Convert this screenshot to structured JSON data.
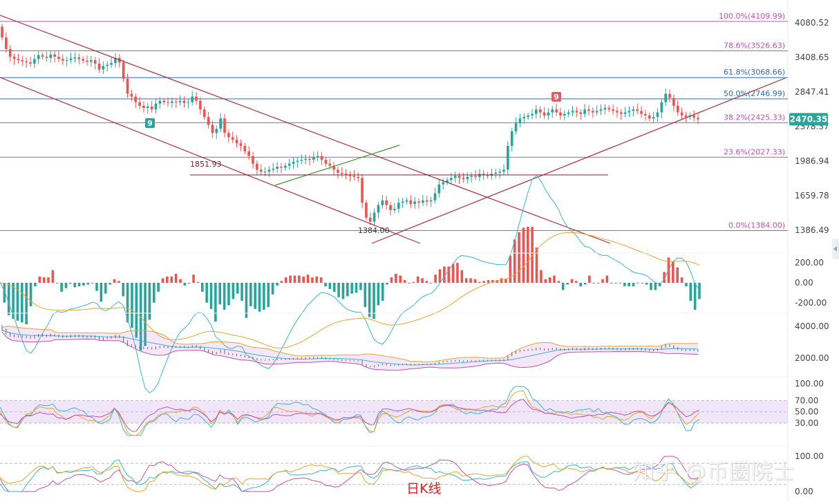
{
  "chart_data": [
    {
      "type": "candlestick",
      "panel": "price",
      "price_axis_ticks": [
        "4080.52",
        "3408.65",
        "2847.41",
        "2378.37",
        "1986.94",
        "1659.78",
        "1386.49"
      ],
      "last_price": "2470.35",
      "fibonacci_levels": [
        {
          "label": "100.0%(4109.99)",
          "price": 4109.99,
          "color": "#c051b0"
        },
        {
          "label": "78.6%(3526.63)",
          "price": 3526.63,
          "color": "#c051b0"
        },
        {
          "label": "61.8%(3068.66)",
          "price": 3068.66,
          "color": "#2a6cb0"
        },
        {
          "label": "50.0%(2746.99)",
          "price": 2746.99,
          "color": "#2a6cb0"
        },
        {
          "label": "38.2%(2425.33)",
          "price": 2425.33,
          "color": "#c051b0"
        },
        {
          "label": "23.6%(2027.33)",
          "price": 2027.33,
          "color": "#c051b0"
        },
        {
          "label": "0.0%(1384.00)",
          "price": 1384.0,
          "color": "#c051b0"
        }
      ],
      "annotations": [
        "1851.93",
        "1384.00"
      ],
      "td_markers": [
        "9",
        "9"
      ],
      "candles_close": [
        3780,
        3560,
        3420,
        3380,
        3360,
        3340,
        3320,
        3300,
        3380,
        3450,
        3420,
        3400,
        3460,
        3420,
        3380,
        3350,
        3360,
        3390,
        3410,
        3380,
        3350,
        3330,
        3360,
        3300,
        3200,
        3260,
        3280,
        3310,
        3400,
        3320,
        3050,
        2820,
        2780,
        2700,
        2650,
        2620,
        2640,
        2600,
        2680,
        2720,
        2700,
        2690,
        2710,
        2700,
        2720,
        2690,
        2700,
        2780,
        2720,
        2600,
        2500,
        2400,
        2300,
        2350,
        2480,
        2300,
        2250,
        2220,
        2180,
        2150,
        2090,
        2040,
        1960,
        1900,
        1880,
        1880,
        1900,
        1910,
        1930,
        1920,
        1940,
        1960,
        1980,
        1990,
        2000,
        2010,
        2000,
        2030,
        2040,
        2000,
        1960,
        1940,
        1900,
        1870,
        1860,
        1850,
        1840,
        1830,
        1820,
        1600,
        1480,
        1450,
        1520,
        1580,
        1620,
        1580,
        1540,
        1550,
        1600,
        1610,
        1620,
        1590,
        1610,
        1600,
        1620,
        1610,
        1620,
        1680,
        1760,
        1780,
        1800,
        1820,
        1840,
        1820,
        1810,
        1830,
        1840,
        1830,
        1860,
        1850,
        1840,
        1860,
        1870,
        1880,
        1900,
        2150,
        2320,
        2420,
        2480,
        2500,
        2520,
        2540,
        2600,
        2560,
        2520,
        2560,
        2600,
        2560,
        2520,
        2540,
        2560,
        2580,
        2560,
        2540,
        2600,
        2580,
        2560,
        2580,
        2600,
        2620,
        2600,
        2580,
        2560,
        2540,
        2560,
        2580,
        2600,
        2580,
        2540,
        2520,
        2480,
        2500,
        2560,
        2700,
        2820,
        2760,
        2650,
        2560,
        2520,
        2500,
        2520,
        2490,
        2470
      ]
    },
    {
      "type": "macd",
      "panel": "macd",
      "axis_ticks": [
        "200.00",
        "0.00",
        "-200.00"
      ]
    },
    {
      "type": "bollinger",
      "panel": "boll",
      "axis_ticks": [
        "4000.00",
        "2000.00"
      ]
    },
    {
      "type": "rsi",
      "panel": "rsi",
      "axis_ticks": [
        "100.00",
        "70.00",
        "50.00",
        "30.00"
      ]
    },
    {
      "type": "kdj",
      "panel": "kdj",
      "axis_ticks": [
        "100.00",
        "0.00"
      ]
    }
  ],
  "timeframe_label": "日K线",
  "watermark": "知乎 @币圈院士",
  "colors": {
    "up": "#26a69a",
    "down": "#ef5350",
    "channel": "#b02a3a",
    "trendline_green": "#3a9a2a",
    "fib_magenta": "#c051b0",
    "fib_blue": "#2a6cb0",
    "last_price_bg": "#26a69a"
  }
}
